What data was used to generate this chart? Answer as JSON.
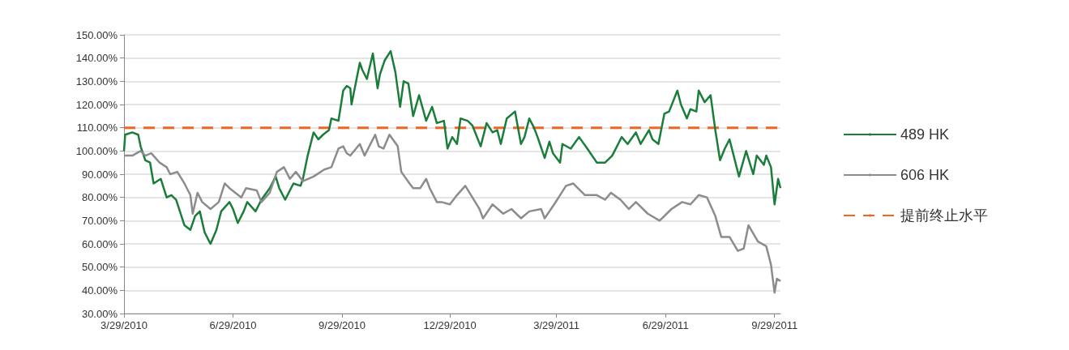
{
  "chart_data": {
    "type": "line",
    "xlim": [
      "2010-03-29",
      "2011-10-04"
    ],
    "xticks": [
      {
        "value": "2010-03-29",
        "label": "3/29/2010"
      },
      {
        "value": "2010-06-29",
        "label": "6/29/2010"
      },
      {
        "value": "2010-09-29",
        "label": "9/29/2010"
      },
      {
        "value": "2010-12-29",
        "label": "12/29/2010"
      },
      {
        "value": "2011-03-29",
        "label": "3/29/2011"
      },
      {
        "value": "2011-06-29",
        "label": "6/29/2011"
      },
      {
        "value": "2011-09-29",
        "label": "9/29/2011"
      }
    ],
    "ylim": [
      30,
      150
    ],
    "yticks": [
      {
        "value": 30,
        "label": "30.00%"
      },
      {
        "value": 40,
        "label": "40.00%"
      },
      {
        "value": 50,
        "label": "50.00%"
      },
      {
        "value": 60,
        "label": "60.00%"
      },
      {
        "value": 70,
        "label": "70.00%"
      },
      {
        "value": 80,
        "label": "80.00%"
      },
      {
        "value": 90,
        "label": "90.00%"
      },
      {
        "value": 100,
        "label": "100.00%"
      },
      {
        "value": 110,
        "label": "110.00%"
      },
      {
        "value": 120,
        "label": "120.00%"
      },
      {
        "value": 130,
        "label": "130.00%"
      },
      {
        "value": 140,
        "label": "140.00%"
      },
      {
        "value": 150,
        "label": "150.00%"
      }
    ],
    "grid": "y",
    "legend": "right",
    "marker": "none",
    "line_style": "solid",
    "series": [
      {
        "name": "489 HK",
        "color": "#1b7d3a",
        "x": [
          "2010-03-29",
          "2010-03-30",
          "2010-04-05",
          "2010-04-10",
          "2010-04-12",
          "2010-04-16",
          "2010-04-20",
          "2010-04-23",
          "2010-04-29",
          "2010-05-04",
          "2010-05-08",
          "2010-05-12",
          "2010-05-19",
          "2010-05-24",
          "2010-05-28",
          "2010-06-01",
          "2010-06-05",
          "2010-06-10",
          "2010-06-15",
          "2010-06-19",
          "2010-06-26",
          "2010-06-29",
          "2010-07-03",
          "2010-07-08",
          "2010-07-11",
          "2010-07-18",
          "2010-07-23",
          "2010-07-30",
          "2010-08-04",
          "2010-08-07",
          "2010-08-12",
          "2010-08-19",
          "2010-08-25",
          "2010-08-27",
          "2010-08-31",
          "2010-09-05",
          "2010-09-09",
          "2010-09-13",
          "2010-09-18",
          "2010-09-20",
          "2010-09-26",
          "2010-09-30",
          "2010-10-03",
          "2010-10-06",
          "2010-10-07",
          "2010-10-14",
          "2010-10-16",
          "2010-10-20",
          "2010-10-25",
          "2010-10-29",
          "2010-10-31",
          "2010-11-04",
          "2010-11-09",
          "2010-11-13",
          "2010-11-17",
          "2010-11-20",
          "2010-11-24",
          "2010-11-28",
          "2010-12-03",
          "2010-12-09",
          "2010-12-14",
          "2010-12-18",
          "2010-12-24",
          "2010-12-27",
          "2010-12-31",
          "2011-01-04",
          "2011-01-07",
          "2011-01-13",
          "2011-01-17",
          "2011-01-24",
          "2011-01-29",
          "2011-02-03",
          "2011-02-07",
          "2011-02-10",
          "2011-02-15",
          "2011-02-22",
          "2011-02-27",
          "2011-03-02",
          "2011-03-06",
          "2011-03-10",
          "2011-03-13",
          "2011-03-19",
          "2011-03-23",
          "2011-03-26",
          "2011-04-01",
          "2011-04-03",
          "2011-04-10",
          "2011-04-17",
          "2011-04-24",
          "2011-05-02",
          "2011-05-09",
          "2011-05-15",
          "2011-05-23",
          "2011-05-28",
          "2011-06-04",
          "2011-06-08",
          "2011-06-15",
          "2011-06-18",
          "2011-06-23",
          "2011-06-28",
          "2011-07-02",
          "2011-07-09",
          "2011-07-12",
          "2011-07-17",
          "2011-07-20",
          "2011-07-25",
          "2011-07-27",
          "2011-08-01",
          "2011-08-06",
          "2011-08-10",
          "2011-08-14",
          "2011-08-18",
          "2011-08-22",
          "2011-08-30",
          "2011-09-05",
          "2011-09-11",
          "2011-09-14",
          "2011-09-20",
          "2011-09-22",
          "2011-09-26",
          "2011-09-29",
          "2011-10-02",
          "2011-10-04"
        ],
        "values": [
          100,
          107,
          108,
          107,
          102,
          96,
          95,
          86,
          88,
          80,
          81,
          79,
          68,
          66,
          72,
          74,
          65,
          60,
          66,
          74,
          78,
          75,
          69,
          74,
          78,
          74,
          79,
          84,
          89,
          84,
          79,
          86,
          85,
          88,
          98,
          108,
          105,
          107,
          109,
          114,
          113,
          126,
          128,
          127,
          120,
          138,
          135,
          131,
          142,
          127,
          133,
          139,
          143,
          134,
          119,
          130,
          129,
          115,
          124,
          113,
          119,
          112,
          113,
          101,
          106,
          103,
          114,
          113,
          111,
          102,
          112,
          108,
          109,
          103,
          114,
          117,
          103,
          106,
          114,
          110,
          106,
          97,
          104,
          99,
          95,
          103,
          101,
          106,
          101,
          95,
          95,
          98,
          106,
          103,
          108,
          103,
          109,
          105,
          103,
          116,
          117,
          126,
          120,
          114,
          118,
          117,
          126,
          121,
          124,
          109,
          96,
          101,
          105,
          89,
          100,
          90,
          98,
          94,
          98,
          93,
          77,
          88,
          84
        ]
      },
      {
        "name": "606 HK",
        "color": "#8c8c8c",
        "x": [
          "2010-03-29",
          "2010-04-05",
          "2010-04-12",
          "2010-04-16",
          "2010-04-21",
          "2010-04-28",
          "2010-05-04",
          "2010-05-07",
          "2010-05-13",
          "2010-05-19",
          "2010-05-24",
          "2010-05-26",
          "2010-05-30",
          "2010-06-03",
          "2010-06-10",
          "2010-06-17",
          "2010-06-22",
          "2010-06-26",
          "2010-07-06",
          "2010-07-10",
          "2010-07-19",
          "2010-07-23",
          "2010-07-30",
          "2010-08-05",
          "2010-08-11",
          "2010-08-16",
          "2010-08-21",
          "2010-08-27",
          "2010-09-05",
          "2010-09-14",
          "2010-09-20",
          "2010-09-26",
          "2010-09-30",
          "2010-10-03",
          "2010-10-06",
          "2010-10-14",
          "2010-10-18",
          "2010-10-27",
          "2010-10-30",
          "2010-11-03",
          "2010-11-08",
          "2010-11-15",
          "2010-11-18",
          "2010-11-25",
          "2010-11-28",
          "2010-12-04",
          "2010-12-09",
          "2010-12-12",
          "2010-12-18",
          "2010-12-22",
          "2010-12-29",
          "2011-01-04",
          "2011-01-11",
          "2011-01-17",
          "2011-01-23",
          "2011-01-26",
          "2011-02-03",
          "2011-02-12",
          "2011-02-19",
          "2011-02-27",
          "2011-03-06",
          "2011-03-16",
          "2011-03-19",
          "2011-03-27",
          "2011-04-01",
          "2011-04-06",
          "2011-04-12",
          "2011-04-22",
          "2011-05-02",
          "2011-05-09",
          "2011-05-14",
          "2011-05-22",
          "2011-05-29",
          "2011-06-04",
          "2011-06-14",
          "2011-06-24",
          "2011-07-04",
          "2011-07-13",
          "2011-07-20",
          "2011-07-27",
          "2011-08-03",
          "2011-08-10",
          "2011-08-15",
          "2011-08-22",
          "2011-08-29",
          "2011-09-03",
          "2011-09-07",
          "2011-09-15",
          "2011-09-22",
          "2011-09-26",
          "2011-09-29",
          "2011-10-01",
          "2011-10-04"
        ],
        "values": [
          98,
          98,
          100,
          98,
          99,
          95,
          93,
          90,
          91,
          86,
          81,
          73,
          82,
          78,
          75,
          78,
          86,
          84,
          80,
          84,
          83,
          78,
          82,
          91,
          93,
          88,
          91,
          87,
          89,
          92,
          93,
          101,
          102,
          99,
          98,
          103,
          98,
          107,
          102,
          101,
          107,
          102,
          91,
          86,
          84,
          84,
          88,
          84,
          78,
          78,
          77,
          81,
          85,
          80,
          75,
          71,
          77,
          73,
          75,
          71,
          74,
          75,
          71,
          77,
          81,
          85,
          86,
          81,
          81,
          79,
          82,
          79,
          75,
          78,
          73,
          70,
          75,
          78,
          77,
          81,
          80,
          72,
          63,
          63,
          57,
          58,
          68,
          61,
          59,
          51,
          39,
          45,
          44
        ]
      }
    ],
    "ref_lines": [
      {
        "axis": "y",
        "value": 110,
        "label": "提前终止水平",
        "color": "#f26522",
        "line_style": "dashed"
      }
    ]
  }
}
